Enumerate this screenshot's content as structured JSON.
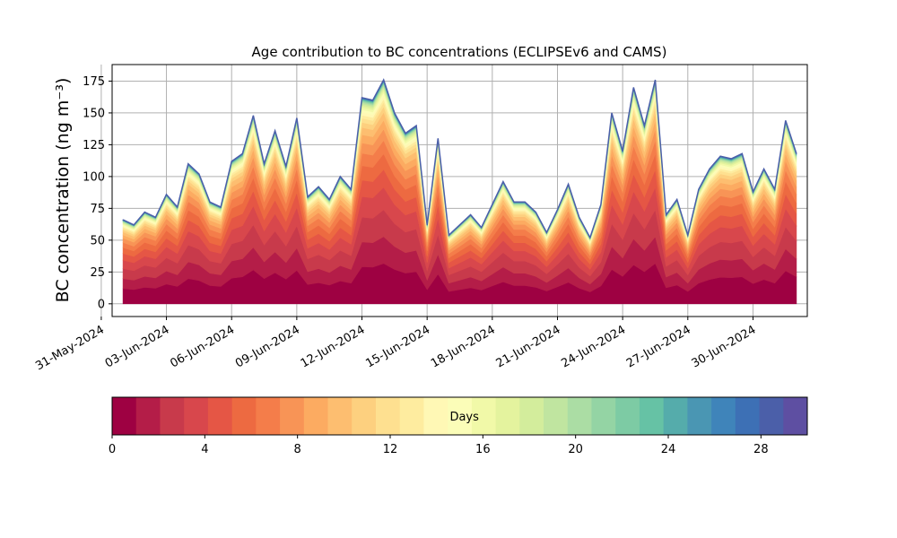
{
  "chart_data": {
    "type": "area",
    "stacked": true,
    "title": "Age contribution to BC concentrations (ECLIPSEv6 and CAMS)",
    "ylabel": "BC concentration (ng m⁻³)",
    "xlabel": "",
    "ylim": [
      -10,
      188
    ],
    "xlim": [
      "2024-05-31T12:00",
      "2024-07-02T12:00"
    ],
    "yticks": [
      0,
      25,
      50,
      75,
      100,
      125,
      150,
      175
    ],
    "ytick_labels": [
      "0",
      "25",
      "50",
      "75",
      "100",
      "125",
      "150",
      "175"
    ],
    "xticks": [
      "2024-05-31",
      "2024-06-03",
      "2024-06-06",
      "2024-06-09",
      "2024-06-12",
      "2024-06-15",
      "2024-06-18",
      "2024-06-21",
      "2024-06-24",
      "2024-06-27",
      "2024-06-30"
    ],
    "xtick_labels": [
      "31-May-2024",
      "03-Jun-2024",
      "06-Jun-2024",
      "09-Jun-2024",
      "12-Jun-2024",
      "15-Jun-2024",
      "18-Jun-2024",
      "21-Jun-2024",
      "24-Jun-2024",
      "27-Jun-2024",
      "30-Jun-2024"
    ],
    "grid": true,
    "x": [
      "2024-06-01T00:00",
      "2024-06-01T12:00",
      "2024-06-02T00:00",
      "2024-06-02T12:00",
      "2024-06-03T00:00",
      "2024-06-03T12:00",
      "2024-06-04T00:00",
      "2024-06-04T12:00",
      "2024-06-05T00:00",
      "2024-06-05T12:00",
      "2024-06-06T00:00",
      "2024-06-06T12:00",
      "2024-06-07T00:00",
      "2024-06-07T12:00",
      "2024-06-08T00:00",
      "2024-06-08T12:00",
      "2024-06-09T00:00",
      "2024-06-09T12:00",
      "2024-06-10T00:00",
      "2024-06-10T12:00",
      "2024-06-11T00:00",
      "2024-06-11T12:00",
      "2024-06-12T00:00",
      "2024-06-12T12:00",
      "2024-06-13T00:00",
      "2024-06-13T12:00",
      "2024-06-14T00:00",
      "2024-06-14T12:00",
      "2024-06-15T00:00",
      "2024-06-15T12:00",
      "2024-06-16T00:00",
      "2024-06-16T12:00",
      "2024-06-17T00:00",
      "2024-06-17T12:00",
      "2024-06-18T00:00",
      "2024-06-18T12:00",
      "2024-06-19T00:00",
      "2024-06-19T12:00",
      "2024-06-20T00:00",
      "2024-06-20T12:00",
      "2024-06-21T00:00",
      "2024-06-21T12:00",
      "2024-06-22T00:00",
      "2024-06-22T12:00",
      "2024-06-23T00:00",
      "2024-06-23T12:00",
      "2024-06-24T00:00",
      "2024-06-24T12:00",
      "2024-06-25T00:00",
      "2024-06-25T12:00",
      "2024-06-26T00:00",
      "2024-06-26T12:00",
      "2024-06-27T00:00",
      "2024-06-27T12:00",
      "2024-06-28T00:00",
      "2024-06-28T12:00",
      "2024-06-29T00:00",
      "2024-06-29T12:00",
      "2024-06-30T00:00",
      "2024-06-30T12:00",
      "2024-07-01T00:00",
      "2024-07-01T12:00",
      "2024-07-02T00:00"
    ],
    "total": [
      66,
      62,
      72,
      68,
      86,
      76,
      110,
      102,
      80,
      76,
      112,
      118,
      148,
      110,
      136,
      108,
      146,
      84,
      92,
      82,
      100,
      90,
      162,
      160,
      176,
      150,
      134,
      140,
      62,
      130,
      54,
      62,
      70,
      60,
      78,
      96,
      80,
      80,
      72,
      56,
      74,
      94,
      68,
      52,
      78,
      150,
      120,
      170,
      140,
      176,
      70,
      82,
      54,
      90,
      106,
      116,
      114,
      118,
      88,
      106,
      90,
      144,
      118
    ],
    "age_fraction_levels": [
      0,
      0.18,
      0.3,
      0.42,
      0.52,
      0.6,
      0.67,
      0.73,
      0.78,
      0.82,
      0.855,
      0.88,
      0.9,
      0.915,
      0.93,
      0.942,
      0.953,
      0.962,
      0.97,
      0.976,
      0.981,
      0.985,
      0.988,
      0.991,
      0.993,
      0.995,
      0.997,
      0.998,
      0.999,
      1
    ],
    "colorbar": {
      "label": "Days",
      "min": 0,
      "max": 30,
      "ticks": [
        0,
        4,
        8,
        12,
        16,
        20,
        24,
        28
      ],
      "tick_labels": [
        "0",
        "4",
        "8",
        "12",
        "16",
        "20",
        "24",
        "28"
      ],
      "colors": [
        "#9e0142",
        "#b41d48",
        "#c83a4b",
        "#d8474c",
        "#e55645",
        "#ed6a41",
        "#f47d4a",
        "#f89456",
        "#fcab61",
        "#fdbe70",
        "#fdd07f",
        "#fee090",
        "#feec9f",
        "#fff8b5",
        "#fbfdb8",
        "#f1f9a8",
        "#e4f39e",
        "#d3ed9c",
        "#c0e5a0",
        "#abdda4",
        "#94d4a4",
        "#7dcba4",
        "#66c2a5",
        "#55acab",
        "#4a96b3",
        "#3f84ba",
        "#3d70b5",
        "#4b5fa9",
        "#5e4fa2"
      ]
    }
  }
}
